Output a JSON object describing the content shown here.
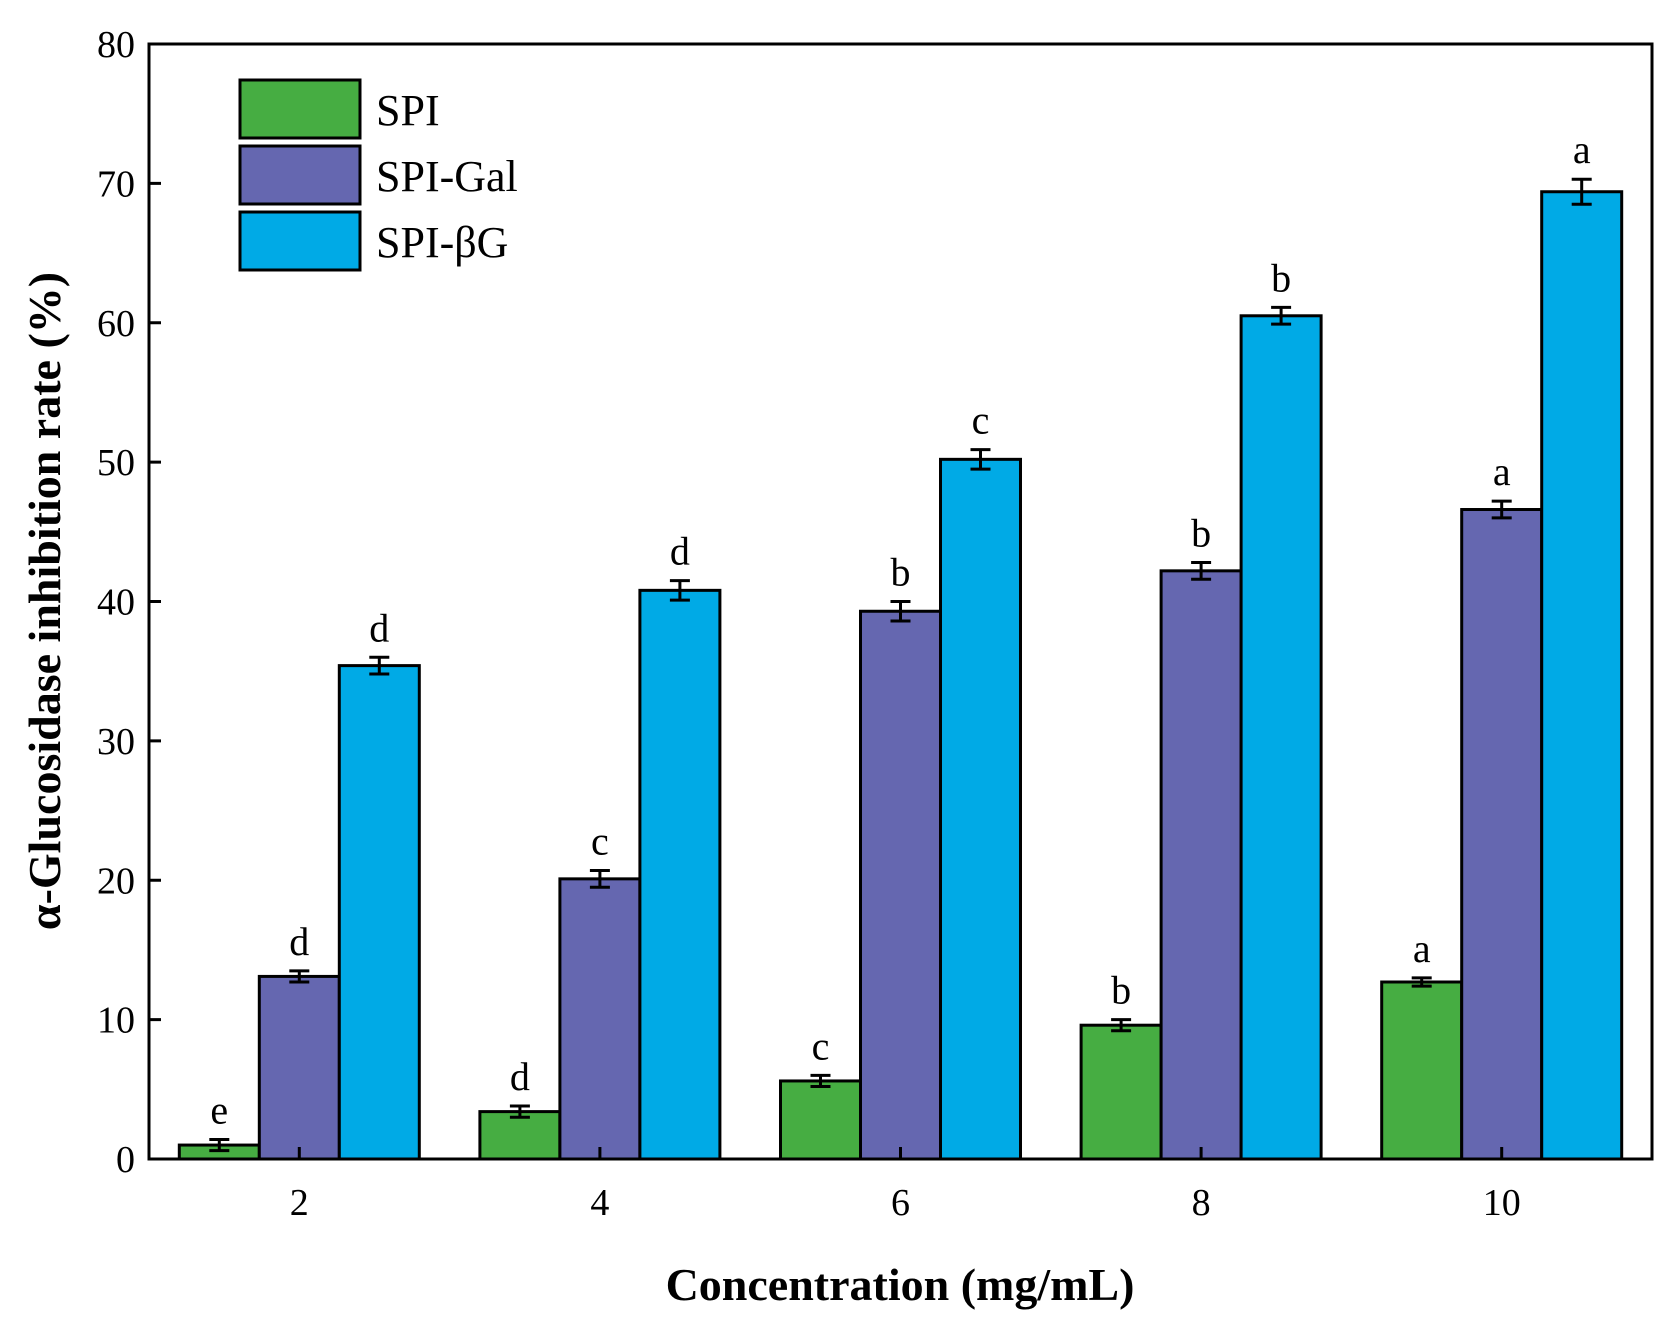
{
  "chart_data": {
    "type": "bar",
    "title": "",
    "xlabel": "Concentration (mg/mL)",
    "ylabel": "α-Glucosidase inhibition rate (%)",
    "ylim": [
      0,
      80
    ],
    "yticks": [
      0,
      10,
      20,
      30,
      40,
      50,
      60,
      70,
      80
    ],
    "categories": [
      "2",
      "4",
      "6",
      "8",
      "10"
    ],
    "grid": false,
    "legend_position": "top-left",
    "series": [
      {
        "name": "SPI",
        "color": "#46AD42",
        "values": [
          1.0,
          3.4,
          5.6,
          9.6,
          12.7
        ],
        "errors": [
          0.4,
          0.4,
          0.4,
          0.4,
          0.3
        ],
        "significance": [
          "e",
          "d",
          "c",
          "b",
          "a"
        ]
      },
      {
        "name": "SPI-Gal",
        "color": "#6567B0",
        "values": [
          13.1,
          20.1,
          39.3,
          42.2,
          46.6
        ],
        "errors": [
          0.4,
          0.6,
          0.7,
          0.6,
          0.6
        ],
        "significance": [
          "d",
          "c",
          "b",
          "b",
          "a"
        ]
      },
      {
        "name": "SPI-βG",
        "color": "#00AAE6",
        "values": [
          35.4,
          40.8,
          50.2,
          60.5,
          69.4
        ],
        "errors": [
          0.6,
          0.7,
          0.7,
          0.6,
          0.9
        ],
        "significance": [
          "d",
          "d",
          "c",
          "b",
          "a"
        ]
      }
    ]
  }
}
